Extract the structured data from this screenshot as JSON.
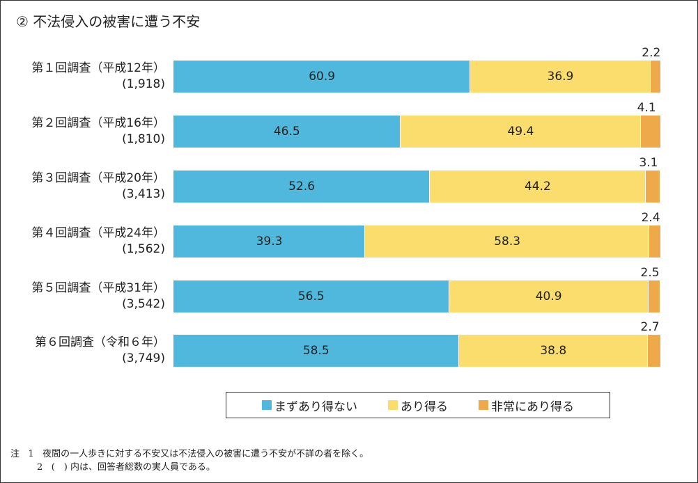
{
  "chart_data": {
    "type": "bar",
    "orientation": "horizontal-stacked",
    "title": "② 不法侵入の被害に遭う不安",
    "unit": "%",
    "categories": [
      {
        "label": "第１回調査（平成12年）",
        "n": "(1,918)"
      },
      {
        "label": "第２回調査（平成16年）",
        "n": "(1,810)"
      },
      {
        "label": "第３回調査（平成20年）",
        "n": "(3,413)"
      },
      {
        "label": "第４回調査（平成24年）",
        "n": "(1,562)"
      },
      {
        "label": "第５回調査（平成31年）",
        "n": "(3,542)"
      },
      {
        "label": "第６回調査（令和６年）",
        "n": "(3,749)"
      }
    ],
    "series": [
      {
        "name": "まずあり得ない",
        "color": "#4fb8dc",
        "values": [
          60.9,
          46.5,
          52.6,
          39.3,
          56.5,
          58.5
        ]
      },
      {
        "name": "あり得る",
        "color": "#fbdd6e",
        "values": [
          36.9,
          49.4,
          44.2,
          58.3,
          40.9,
          38.8
        ]
      },
      {
        "name": "非常にあり得る",
        "color": "#eeaa4a",
        "values": [
          2.2,
          4.1,
          3.1,
          2.4,
          2.5,
          2.7
        ]
      }
    ],
    "xlim": [
      0,
      100
    ],
    "legend": "bottom"
  },
  "notes": [
    {
      "mark": "注",
      "num": "1",
      "text": "夜間の一人歩きに対する不安又は不法侵入の被害に遭う不安が不詳の者を除く。"
    },
    {
      "mark": "",
      "num": "2",
      "text": "(　) 内は、回答者総数の実人員である。"
    }
  ]
}
